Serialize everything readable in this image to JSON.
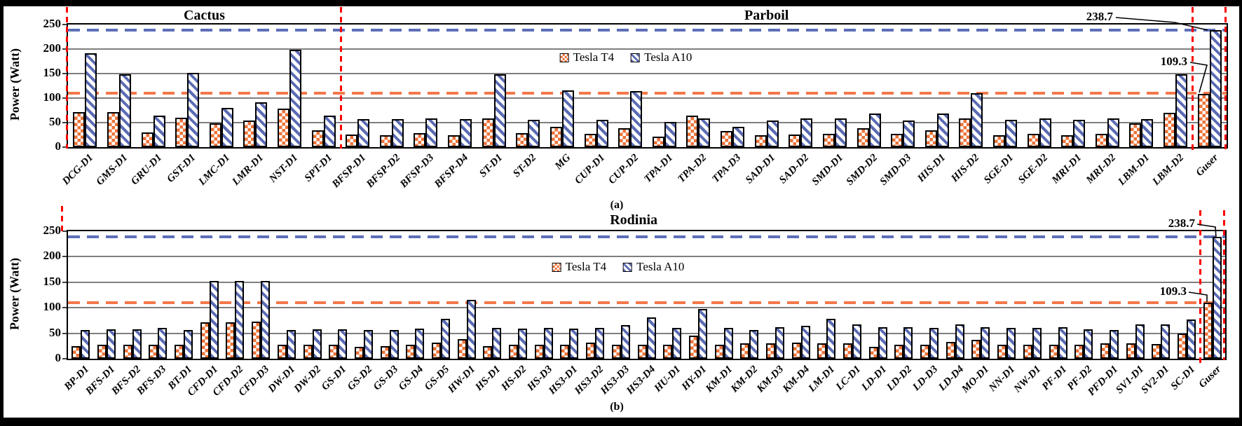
{
  "figure": {
    "background": "#ffffff",
    "border_color": "#000000"
  },
  "colors": {
    "tesla_t4": "#EC7237",
    "tesla_a10": "#5B6CB4",
    "t4_reference_line": "#F4774A",
    "a10_reference_line": "#5E6FB8",
    "section_divider": "#FF0000",
    "gridline": "#7F7F7F"
  },
  "chart_data": [
    {
      "type": "bar",
      "caption": "(a)",
      "ylabel": "Power (Watt)",
      "ylim": [
        0,
        250
      ],
      "yticks": [
        0,
        50,
        100,
        150,
        200,
        250
      ],
      "grid": true,
      "legend_position": "upper-center-inside",
      "sections": [
        {
          "label": "Cactus",
          "start": 0,
          "end": 8
        },
        {
          "label": "Parboil",
          "start": 8,
          "end": 33
        }
      ],
      "categories": [
        "DCG-D1",
        "GMS-D1",
        "GRU-D1",
        "GST-D1",
        "LMC-D1",
        "LMR-D1",
        "NST-D1",
        "SPT-D1",
        "BFSP-D1",
        "BFSP-D2",
        "BFSP-D3",
        "BFSP-D4",
        "ST-D1",
        "ST-D2",
        "MG",
        "CUP-D1",
        "CUP-D2",
        "TPA-D1",
        "TPA-D2",
        "TPA-D3",
        "SAD-D1",
        "SAD-D2",
        "SMD-D1",
        "SMD-D2",
        "SMD-D3",
        "HIS-D1",
        "HIS-D2",
        "SGE-D1",
        "SGE-D2",
        "MRI-D1",
        "MRI-D2",
        "LBM-D1",
        "LBM-D2",
        "Guser"
      ],
      "series": [
        {
          "name": "Tesla T4",
          "pattern": "checker",
          "color": "#EC7237",
          "values": [
            72,
            72,
            30,
            60,
            49,
            55,
            78,
            35,
            26,
            25,
            28,
            25,
            58,
            29,
            41,
            27,
            39,
            21,
            64,
            33,
            25,
            26,
            27,
            38,
            27,
            35,
            58,
            25,
            27,
            25,
            27,
            49,
            70,
            109.3
          ]
        },
        {
          "name": "Tesla A10",
          "pattern": "diagonal-stripe",
          "color": "#5B6CB4",
          "values": [
            191,
            149,
            65,
            151,
            80,
            91,
            198,
            65,
            57,
            57,
            59,
            57,
            149,
            56,
            116,
            56,
            115,
            52,
            58,
            42,
            55,
            58,
            58,
            68,
            55,
            68,
            110,
            56,
            58,
            56,
            58,
            57,
            148,
            238.7
          ]
        }
      ],
      "reference_lines": [
        {
          "label": "238.7",
          "value": 238.7,
          "color": "#5E6FB8",
          "style": "dashed"
        },
        {
          "label": "109.3",
          "value": 109.3,
          "color": "#F4774A",
          "style": "dashed"
        }
      ],
      "annotations": [
        {
          "text": "238.7",
          "target_category": "Guser",
          "target_series": "Tesla A10"
        },
        {
          "text": "109.3",
          "target_category": "Guser",
          "target_series": "Tesla T4"
        }
      ]
    },
    {
      "type": "bar",
      "caption": "(b)",
      "ylabel": "Power (Watt)",
      "ylim": [
        0,
        250
      ],
      "yticks": [
        0,
        50,
        100,
        150,
        200,
        250
      ],
      "grid": true,
      "legend_position": "upper-center-inside",
      "sections": [
        {
          "label": "Rodinia",
          "start": 0,
          "end": 44
        }
      ],
      "categories": [
        "BP-D1",
        "BFS-D1",
        "BFS-D2",
        "BFS-D3",
        "BT-D1",
        "CFD-D1",
        "CFD-D2",
        "CFD-D3",
        "DW-D1",
        "DW-D2",
        "GS-D1",
        "GS-D2",
        "GS-D3",
        "GS-D4",
        "GS-D5",
        "HW-D1",
        "HS-D1",
        "HS-D2",
        "HS-D3",
        "HS3-D1",
        "HS3-D2",
        "HS3-D3",
        "HS3-D4",
        "HU-D1",
        "HY-D1",
        "KM-D1",
        "KM-D2",
        "KM-D3",
        "KM-D4",
        "LM-D1",
        "LC-D1",
        "LD-D1",
        "LD-D2",
        "LD-D3",
        "LD-D4",
        "MO-D1",
        "NN-D1",
        "NW-D1",
        "PF-D1",
        "PF-D2",
        "PFD-D1",
        "SV1-D1",
        "SV2-D1",
        "SC-D1",
        "Guser"
      ],
      "series": [
        {
          "name": "Tesla T4",
          "pattern": "checker",
          "color": "#EC7237",
          "values": [
            25,
            27,
            27,
            27,
            27,
            71,
            72,
            73,
            27,
            27,
            27,
            24,
            25,
            28,
            32,
            38,
            25,
            28,
            28,
            28,
            32,
            28,
            28,
            27,
            46,
            27,
            30,
            30,
            32,
            30,
            30,
            23,
            28,
            27,
            33,
            37,
            27,
            27,
            27,
            27,
            30,
            30,
            29,
            49,
            109.3
          ]
        },
        {
          "name": "Tesla A10",
          "pattern": "diagonal-stripe",
          "color": "#5B6CB4",
          "values": [
            57,
            58,
            58,
            60,
            57,
            153,
            153,
            152,
            56,
            58,
            58,
            56,
            57,
            59,
            78,
            115,
            60,
            59,
            60,
            59,
            60,
            66,
            81,
            60,
            98,
            60,
            57,
            62,
            65,
            78,
            67,
            62,
            62,
            61,
            67,
            62,
            61,
            61,
            62,
            58,
            57,
            67,
            67,
            77,
            238.7
          ]
        }
      ],
      "reference_lines": [
        {
          "label": "238.7",
          "value": 238.7,
          "color": "#5E6FB8",
          "style": "dashed"
        },
        {
          "label": "109.3",
          "value": 109.3,
          "color": "#F4774A",
          "style": "dashed"
        }
      ],
      "annotations": [
        {
          "text": "238.7",
          "target_category": "Guser",
          "target_series": "Tesla A10"
        },
        {
          "text": "109.3",
          "target_category": "Guser",
          "target_series": "Tesla T4"
        }
      ]
    }
  ]
}
